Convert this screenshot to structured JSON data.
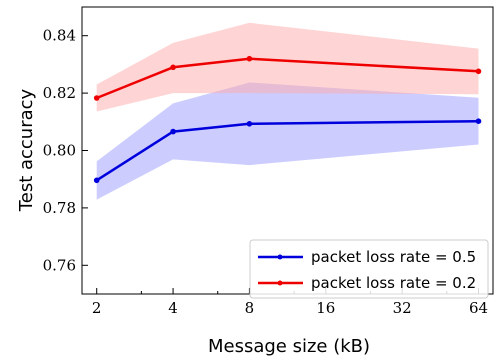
{
  "chart_data": {
    "type": "line",
    "xscale": "log2",
    "x": [
      2,
      4,
      8,
      64
    ],
    "xticks": [
      2,
      4,
      8,
      16,
      32,
      64
    ],
    "xtick_labels": [
      "2",
      "4",
      "8",
      "16",
      "32",
      "64"
    ],
    "xlim": [
      1.75,
      73
    ],
    "yticks": [
      0.76,
      0.78,
      0.8,
      0.82,
      0.84
    ],
    "ytick_labels": [
      "0.76",
      "0.78",
      "0.80",
      "0.82",
      "0.84"
    ],
    "ylim": [
      0.75,
      0.85
    ],
    "xlabel": "Message size (kB)",
    "ylabel": "Test accuracy",
    "grid": false,
    "legend_position": "bottom-right",
    "series": [
      {
        "name": "packet loss rate = 0.5",
        "color": "#0000dd",
        "band_color": "#9999ff",
        "values": [
          0.7896,
          0.8066,
          0.8093,
          0.8102
        ],
        "lower": [
          0.7829,
          0.7969,
          0.7949,
          0.8021
        ],
        "upper": [
          0.7962,
          0.8164,
          0.8237,
          0.8184
        ]
      },
      {
        "name": "packet loss rate = 0.2",
        "color": "#ee0000",
        "band_color": "#ffaaaa",
        "values": [
          0.8183,
          0.829,
          0.832,
          0.8276
        ],
        "lower": [
          0.8136,
          0.82,
          0.82,
          0.8196
        ],
        "upper": [
          0.823,
          0.8375,
          0.8445,
          0.8355
        ]
      }
    ]
  }
}
